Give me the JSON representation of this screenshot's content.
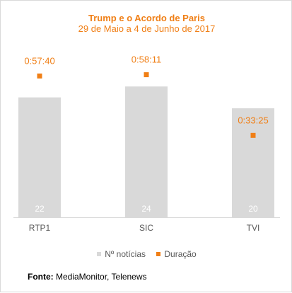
{
  "chart_data": {
    "type": "bar",
    "title": "Trump e o Acordo de Paris",
    "subtitle": "29 de Maio a 4 de Junho de 2017",
    "categories": [
      "RTP1",
      "SIC",
      "TVI"
    ],
    "series": [
      {
        "name": "Nº notícias",
        "kind": "bar",
        "values": [
          22,
          24,
          20
        ]
      },
      {
        "name": "Duração",
        "kind": "marker",
        "values_seconds": [
          3460,
          3491,
          2005
        ],
        "labels": [
          "0:57:40",
          "0:58:11",
          "0:33:25"
        ]
      }
    ],
    "legend": [
      "Nº notícias",
      "Duração"
    ],
    "legend_position": "bottom",
    "grid": false,
    "colors": {
      "bars": "#d9d9d9",
      "markers": "#f07f16",
      "text": "#595959"
    }
  },
  "source": {
    "label": "Fonte:",
    "text": "MediaMonitor, Telenews"
  }
}
